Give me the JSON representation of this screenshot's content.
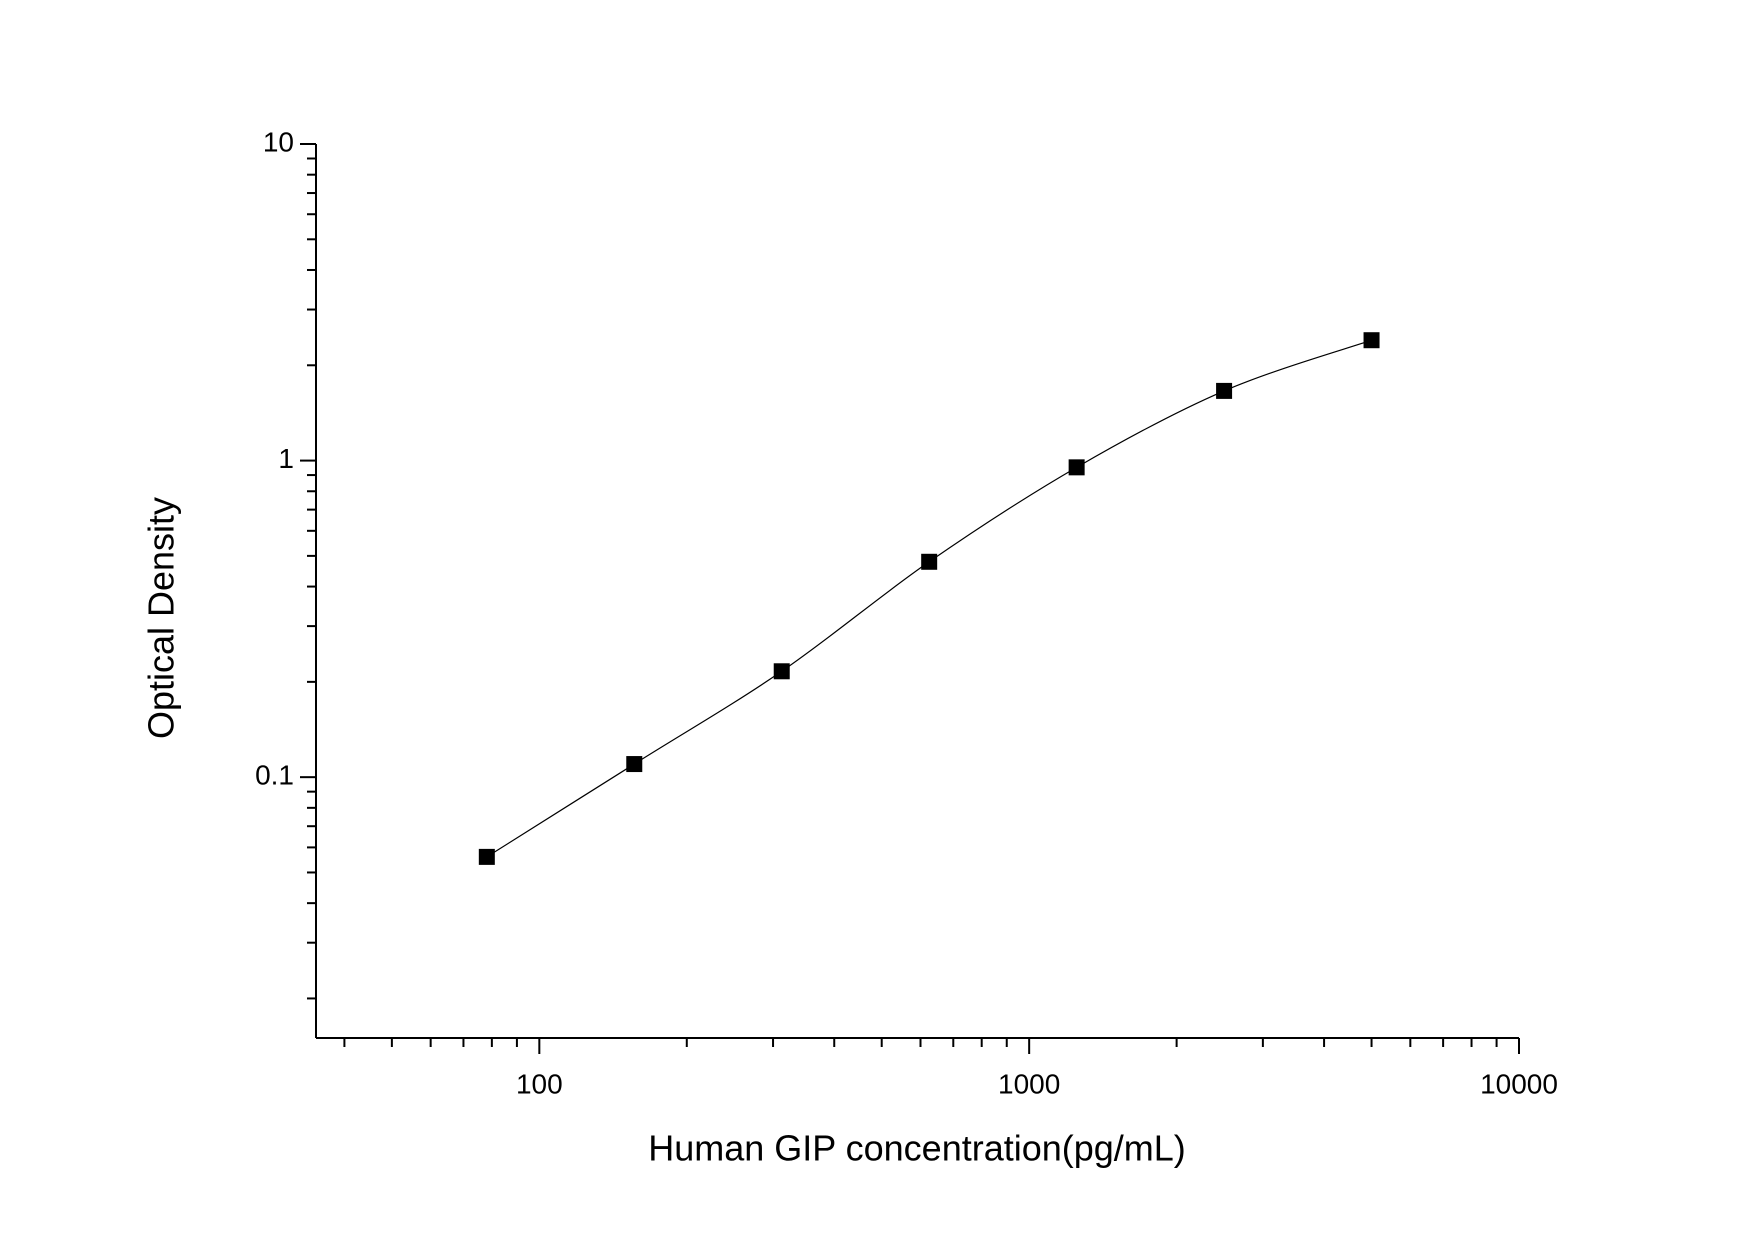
{
  "chart_data": {
    "type": "scatter",
    "x_label": "Human GIP concentration(pg/mL)",
    "y_label": "Optical Density",
    "x_log": true,
    "y_log": true,
    "xlim": [
      35,
      10000
    ],
    "ylim": [
      0.015,
      10
    ],
    "xticks": [
      100,
      1000,
      10000
    ],
    "yticks": [
      0.1,
      1,
      10
    ],
    "xminorticks": [
      40,
      50,
      60,
      70,
      80,
      90,
      200,
      300,
      400,
      500,
      600,
      700,
      800,
      900,
      2000,
      3000,
      4000,
      5000,
      6000,
      7000,
      8000,
      9000
    ],
    "yminorticks": [
      0.02,
      0.03,
      0.04,
      0.05,
      0.06,
      0.07,
      0.08,
      0.09,
      0.2,
      0.3,
      0.4,
      0.5,
      0.6,
      0.7,
      0.8,
      0.9,
      2,
      3,
      4,
      5,
      6,
      7,
      8,
      9
    ],
    "fit_line": true,
    "series": [
      {
        "color": "#000000",
        "x": [
          78.125,
          156.25,
          312.5,
          625,
          1250,
          2500,
          5000
        ],
        "values": [
          0.056,
          0.11,
          0.216,
          0.479,
          0.952,
          1.66,
          2.4
        ]
      }
    ]
  }
}
